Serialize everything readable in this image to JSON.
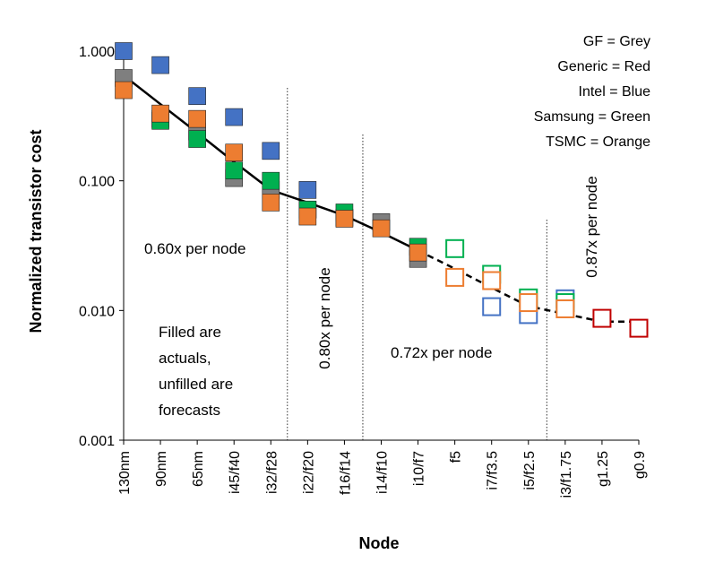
{
  "chart_data": {
    "type": "scatter",
    "ylabel": "Normalized transistor cost",
    "xlabel": "Node",
    "y_scale": "log",
    "ylim": [
      0.001,
      1.0
    ],
    "y_ticks": [
      "1.000",
      "0.100",
      "0.010",
      "0.001"
    ],
    "categories": [
      "130nm",
      "90nm",
      "65nm",
      "i45/f40",
      "i32/f28",
      "i22/f20",
      "f16/f14",
      "i14/f10",
      "i10/f7",
      "f5",
      "i7/f3.5",
      "i5/f2.5",
      "i3/f1.75",
      "g1.25",
      "g0.9"
    ],
    "legend": [
      "GF = Grey",
      "Generic = Red",
      "Intel = Blue",
      "Samsung = Green",
      "TSMC = Orange"
    ],
    "colors": {
      "GF": "#7f7f7f",
      "Generic": "#c00000",
      "Intel": "#4472c4",
      "Samsung": "#00b050",
      "TSMC": "#ed7d31"
    },
    "series": [
      {
        "name": "GF",
        "color": "#7f7f7f",
        "filled": [
          true,
          true,
          true,
          true,
          true,
          true,
          true,
          true,
          true
        ],
        "points": [
          [
            0,
            0.62
          ],
          [
            1,
            0.3
          ],
          [
            2,
            0.24
          ],
          [
            3,
            0.105
          ],
          [
            4,
            0.085
          ],
          [
            5,
            0.06
          ],
          [
            6,
            0.052
          ],
          [
            7,
            0.048
          ],
          [
            8,
            0.025
          ]
        ]
      },
      {
        "name": "Intel",
        "color": "#4472c4",
        "filled": [
          true,
          true,
          true,
          true,
          true,
          true,
          false,
          false,
          false
        ],
        "points": [
          [
            0,
            1.0
          ],
          [
            1,
            0.78
          ],
          [
            2,
            0.45
          ],
          [
            3,
            0.31
          ],
          [
            4,
            0.17
          ],
          [
            5,
            0.085
          ],
          [
            10,
            0.0107
          ],
          [
            11,
            0.0093
          ],
          [
            12,
            0.0123
          ]
        ]
      },
      {
        "name": "Samsung",
        "color": "#00b050",
        "filled": [
          true,
          true,
          true,
          true,
          true,
          true,
          true,
          false,
          false,
          false,
          false
        ],
        "points": [
          [
            1,
            0.29
          ],
          [
            2,
            0.21
          ],
          [
            3,
            0.12
          ],
          [
            4,
            0.1
          ],
          [
            5,
            0.06
          ],
          [
            6,
            0.057
          ],
          [
            8,
            0.031
          ],
          [
            9,
            0.03
          ],
          [
            10,
            0.019
          ],
          [
            11,
            0.0125
          ],
          [
            12,
            0.0115
          ]
        ]
      },
      {
        "name": "TSMC",
        "color": "#ed7d31",
        "filled": [
          true,
          true,
          true,
          true,
          true,
          true,
          true,
          true,
          true,
          false,
          false,
          false,
          false
        ],
        "points": [
          [
            0,
            0.5
          ],
          [
            1,
            0.33
          ],
          [
            2,
            0.3
          ],
          [
            3,
            0.165
          ],
          [
            4,
            0.068
          ],
          [
            5,
            0.053
          ],
          [
            6,
            0.051
          ],
          [
            7,
            0.043
          ],
          [
            8,
            0.028
          ],
          [
            9,
            0.018
          ],
          [
            10,
            0.017
          ],
          [
            11,
            0.0115
          ],
          [
            12,
            0.0103
          ]
        ]
      },
      {
        "name": "Generic",
        "color": "#c00000",
        "filled": [
          false,
          false
        ],
        "points": [
          [
            13,
            0.0087
          ],
          [
            14,
            0.0073
          ]
        ]
      }
    ],
    "trend_solid": [
      [
        0,
        0.65
      ],
      [
        1,
        0.39
      ],
      [
        2,
        0.235
      ],
      [
        3,
        0.14
      ],
      [
        4,
        0.085
      ],
      [
        5,
        0.068
      ],
      [
        6,
        0.054
      ],
      [
        7,
        0.04
      ],
      [
        8,
        0.029
      ]
    ],
    "trend_dashed": [
      [
        8,
        0.029
      ],
      [
        9,
        0.021
      ],
      [
        10,
        0.015
      ],
      [
        11,
        0.0108
      ],
      [
        12,
        0.0094
      ],
      [
        13,
        0.0082
      ],
      [
        14,
        0.0082
      ]
    ],
    "dividers": [
      4.45,
      6.5,
      11.5
    ],
    "annotations": {
      "seg1": "0.60x per node",
      "seg2": "0.80x per node",
      "seg3": "0.72x per node",
      "seg4": "0.87x per node",
      "note": [
        "Filled are",
        "actuals,",
        "unfilled are",
        "forecasts"
      ]
    }
  }
}
